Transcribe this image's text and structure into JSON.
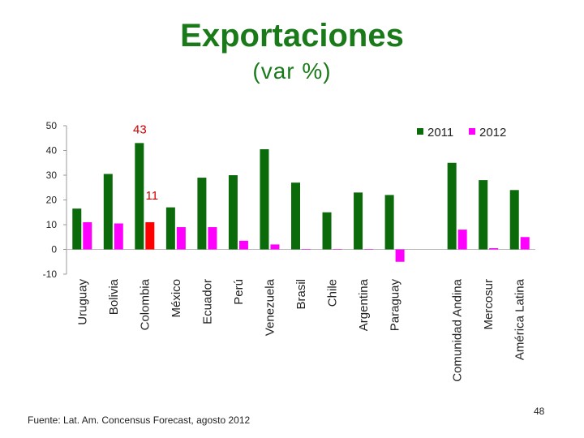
{
  "slide": {
    "title": "Exportaciones",
    "subtitle": "(var %)",
    "source": "Fuente: Lat. Am. Concensus Forecast, agosto 2012",
    "page_number": "48"
  },
  "chart_data": {
    "type": "bar",
    "categories": [
      "Uruguay",
      "Bolivia",
      "Colombia",
      "México",
      "Ecuador",
      "Perú",
      "Venezuela",
      "Brasil",
      "Chile",
      "Argentina",
      "Paraguay",
      "",
      "Comunidad Andina",
      "Mercosur",
      "América Latina"
    ],
    "series": [
      {
        "name": "2011",
        "color": "#0b6b0b",
        "values": [
          16.5,
          30.5,
          43,
          17,
          29,
          30,
          40.5,
          27,
          15,
          23,
          22,
          null,
          35,
          28,
          24
        ]
      },
      {
        "name": "2012",
        "color": "#ff00ff",
        "values": [
          11,
          10.5,
          11,
          9,
          9,
          3.5,
          2,
          0,
          0,
          0,
          -5,
          null,
          8,
          0.5,
          5
        ]
      }
    ],
    "highlight": {
      "category": "Colombia",
      "series": "2012",
      "color": "#ff0000"
    },
    "annotations": [
      {
        "text": "43",
        "category": "Colombia",
        "series": "2011",
        "color": "#cc0000"
      },
      {
        "text": "11",
        "category": "Colombia",
        "series": "2012",
        "color": "#cc0000"
      }
    ],
    "ylim": [
      -10,
      50
    ],
    "yticks": [
      -10,
      0,
      10,
      20,
      30,
      40,
      50
    ],
    "legend": "top-right",
    "grid": false
  }
}
